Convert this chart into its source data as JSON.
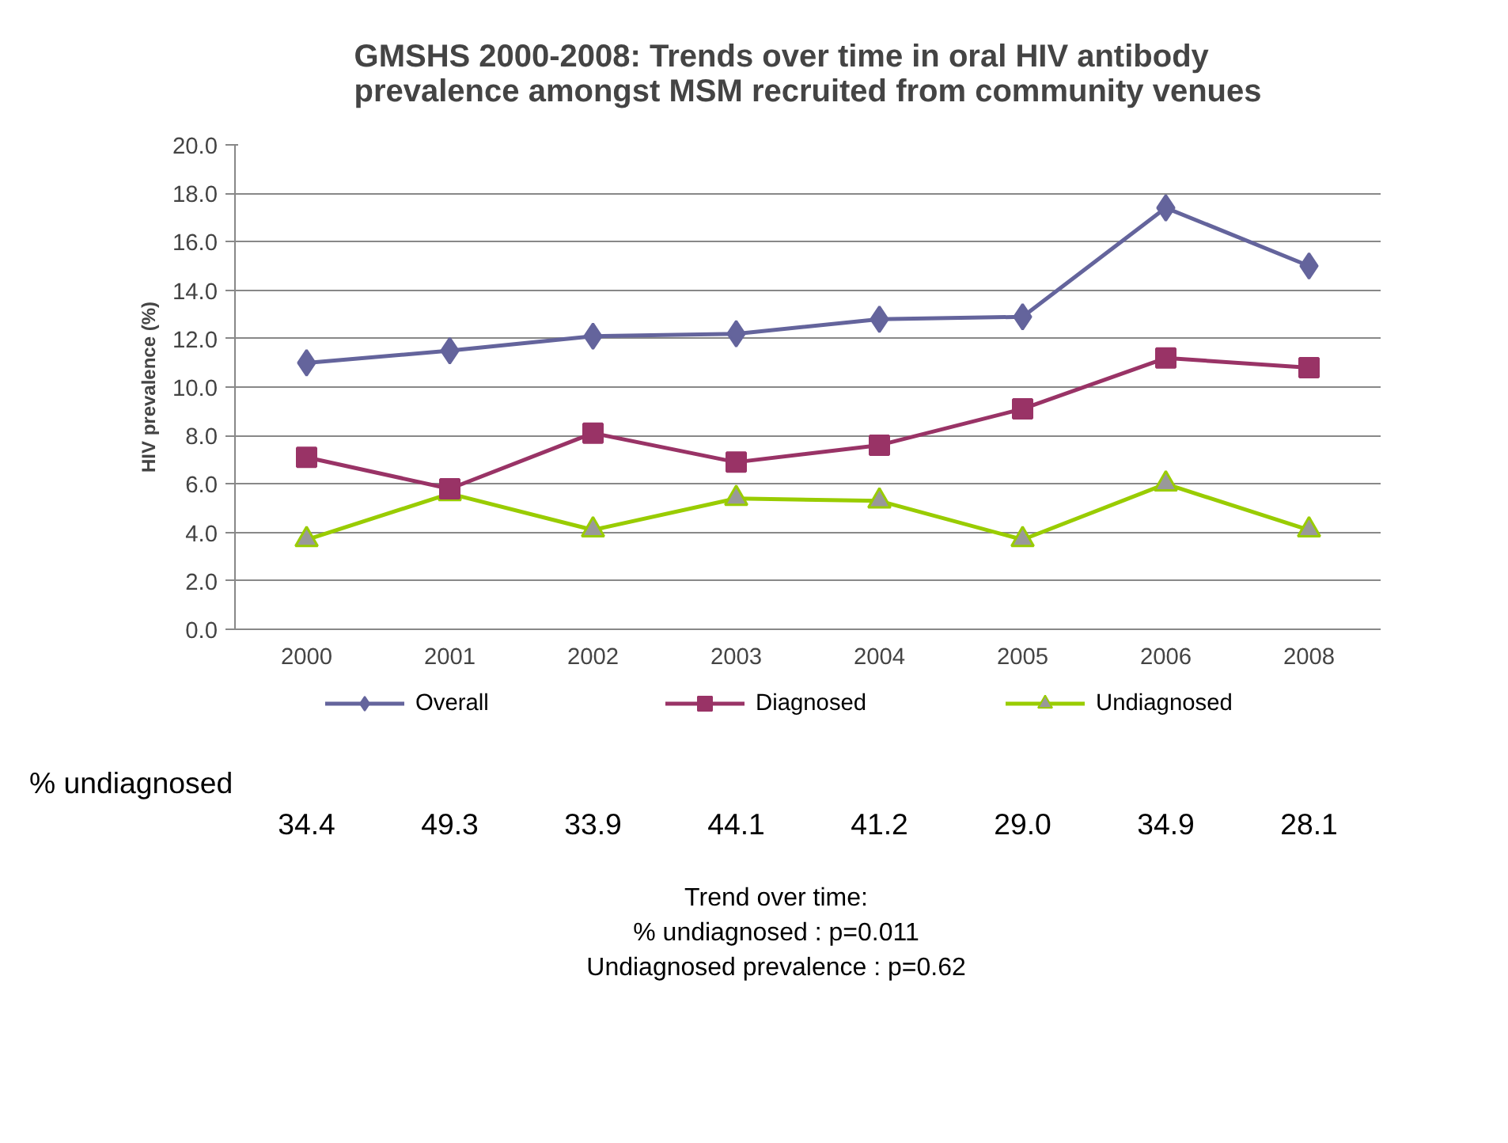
{
  "chart_data": {
    "type": "line",
    "title": "GMSHS 2000-2008: Trends over time in oral HIV antibody\nprevalence amongst MSM recruited from community venues",
    "ylabel": "HIV prevalence (%)",
    "categories": [
      "2000",
      "2001",
      "2002",
      "2003",
      "2004",
      "2005",
      "2006",
      "2008"
    ],
    "series": [
      {
        "name": "Overall",
        "color": "#64649c",
        "marker": "diamond",
        "values": [
          11.0,
          11.5,
          12.1,
          12.2,
          12.8,
          12.9,
          17.4,
          15.0
        ]
      },
      {
        "name": "Diagnosed",
        "color": "#993366",
        "marker": "square",
        "values": [
          7.1,
          5.8,
          8.1,
          6.9,
          7.6,
          9.1,
          11.2,
          10.8
        ]
      },
      {
        "name": "Undiagnosed",
        "color": "#99cc00",
        "marker": "triangle",
        "values": [
          3.7,
          5.6,
          4.1,
          5.4,
          5.3,
          3.7,
          6.0,
          4.1
        ]
      }
    ],
    "ylim": [
      0,
      20
    ],
    "yticks": [
      {
        "value": 0,
        "label": "0.0"
      },
      {
        "value": 2,
        "label": "2.0"
      },
      {
        "value": 4,
        "label": "4.0"
      },
      {
        "value": 6,
        "label": "6.0"
      },
      {
        "value": 8,
        "label": "8.0"
      },
      {
        "value": 10,
        "label": "10.0"
      },
      {
        "value": 12,
        "label": "12.0"
      },
      {
        "value": 14,
        "label": "14.0"
      },
      {
        "value": 16,
        "label": "16.0"
      },
      {
        "value": 18,
        "label": "18.0"
      },
      {
        "value": 20,
        "label": "20.0"
      }
    ],
    "grid": "y",
    "legend": "bottom",
    "line_style": "solid",
    "annotations": [
      "% undiagnosed",
      "34.4",
      "49.3",
      "33.9",
      "44.1",
      "41.2",
      "29.0",
      "34.9",
      "28.1",
      "Trend over time:",
      "% undiagnosed : p=0.011",
      "Undiagnosed prevalence : p=0.62"
    ]
  }
}
